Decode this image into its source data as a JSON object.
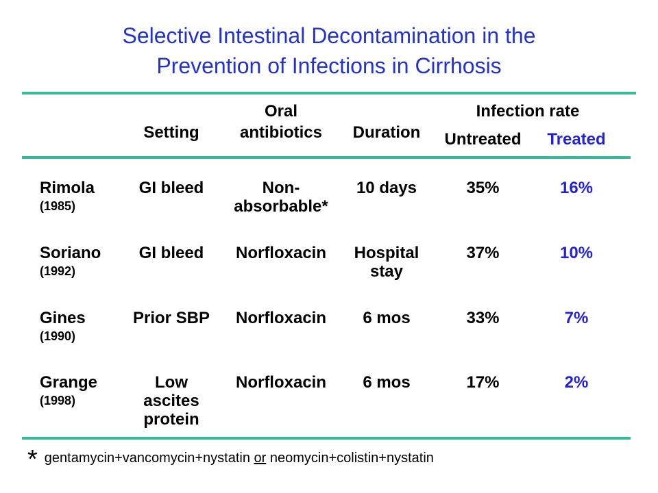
{
  "title": {
    "line1": "Selective Intestinal Decontamination in the",
    "line2": "Prevention of  Infections in Cirrhosis"
  },
  "colors": {
    "title": "#2233cc",
    "rule": "#33bb99",
    "treated": "#2222dd"
  },
  "header": {
    "setting": "Setting",
    "oral1": "Oral",
    "oral2": "antibiotics",
    "duration": "Duration",
    "infection": "Infection rate",
    "untreated": "Untreated",
    "treated": "Treated"
  },
  "rows": [
    {
      "study": "Rimola",
      "year": "(1985)",
      "setting1": "GI bleed",
      "setting2": "",
      "setting3": "",
      "abx1": "Non-",
      "abx2": "absorbable*",
      "dur1": "10 days",
      "dur2": "",
      "untreated": "35%",
      "treated": "16%"
    },
    {
      "study": "Soriano",
      "year": "(1992)",
      "setting1": "GI bleed",
      "setting2": "",
      "setting3": "",
      "abx1": "Norfloxacin",
      "abx2": "",
      "dur1": "Hospital",
      "dur2": "stay",
      "untreated": "37%",
      "treated": "10%"
    },
    {
      "study": "Gines",
      "year": "(1990)",
      "setting1": "Prior SBP",
      "setting2": "",
      "setting3": "",
      "abx1": "Norfloxacin",
      "abx2": "",
      "dur1": "6 mos",
      "dur2": "",
      "untreated": "33%",
      "treated": "7%"
    },
    {
      "study": "Grange",
      "year": "(1998)",
      "setting1": "Low",
      "setting2": "ascites",
      "setting3": "protein",
      "abx1": "Norfloxacin",
      "abx2": "",
      "dur1": "6 mos",
      "dur2": "",
      "untreated": "17%",
      "treated": "2%"
    }
  ],
  "footnote": {
    "star": "*",
    "part1": "gentamycin+vancomycin+nystatin",
    "or": "or",
    "part2": "neomycin+colistin+nystatin"
  }
}
